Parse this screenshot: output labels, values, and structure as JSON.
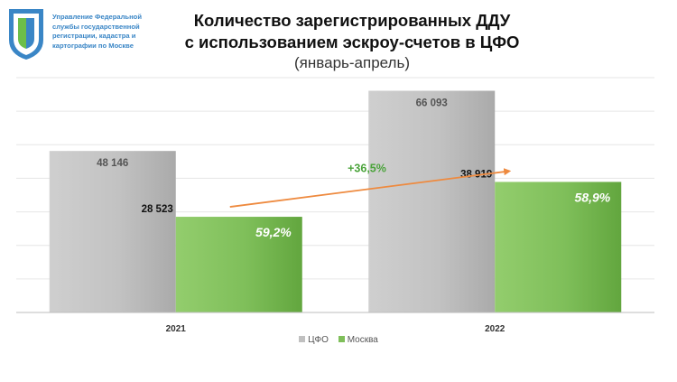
{
  "org": {
    "lines": [
      "Управление Федеральной",
      "службы государственной",
      "регистрации, кадастра и",
      "картографии по Москве"
    ]
  },
  "title": {
    "line1": "Количество зарегистрированных ДДУ",
    "line2": "с использованием эскроу-счетов в ЦФО",
    "subtitle": "(январь-апрель)"
  },
  "colors": {
    "cfo": "#c0c0c0",
    "moscow": "#7fbf5a",
    "arrow": "#ee8a3f",
    "growth_text": "#4aa33a",
    "logo_blue": "#3a86c6",
    "logo_green": "#6cbf4a"
  },
  "chart_data": {
    "type": "bar",
    "categories": [
      "2021",
      "2022"
    ],
    "series": [
      {
        "name": "ЦФО",
        "values": [
          48146,
          66093
        ],
        "labels": [
          "48 146",
          "66 093"
        ]
      },
      {
        "name": "Москва",
        "values": [
          28523,
          38919
        ],
        "labels": [
          "28 523",
          "38 919"
        ],
        "share_labels": [
          "59,2%",
          "58,9%"
        ]
      }
    ],
    "ylim": [
      0,
      70000
    ],
    "grid": true,
    "legend_position": "bottom",
    "annotation": {
      "text": "+36,5%",
      "from_category": "2021",
      "to_category": "2022",
      "series": "Москва"
    }
  }
}
